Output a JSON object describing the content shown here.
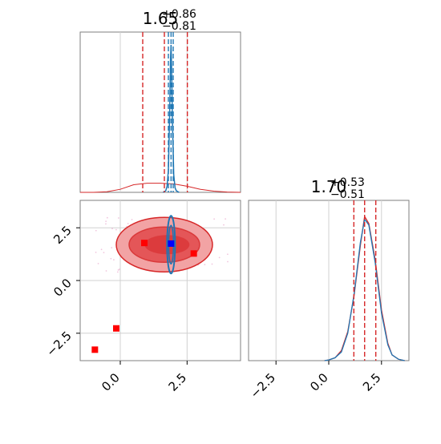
{
  "colors": {
    "red": "#d62728",
    "red_fill_outer": "#f2a3a4",
    "red_fill_inner": "#e2494b",
    "blue": "#1f77b4",
    "marker_red": "#ff0000",
    "marker_blue": "#0000ff",
    "grid": "#d0d0d0",
    "frame": "#7f7f7f"
  },
  "chart_data": [
    {
      "type": "histogram",
      "panel": "top-left",
      "title": {
        "value": "1.65",
        "plus": "+0.86",
        "minus": "−0.81"
      },
      "xlim": [
        -1.5,
        4.5
      ],
      "grid": true,
      "quantile_lines_red": [
        0.84,
        1.65,
        2.51
      ],
      "quantile_lines_blue": [
        1.8,
        1.9,
        1.98
      ],
      "series": [
        {
          "color": "red",
          "note": "broad distribution",
          "x": [
            -1.5,
            -1.0,
            -0.5,
            0.0,
            0.5,
            1.0,
            1.5,
            2.0,
            2.5,
            3.0,
            3.5,
            4.0,
            4.5
          ],
          "y": [
            0,
            0,
            0.004,
            0.02,
            0.05,
            0.06,
            0.06,
            0.055,
            0.04,
            0.02,
            0.008,
            0.002,
            0
          ]
        },
        {
          "color": "blue",
          "note": "narrow peak",
          "x": [
            1.6,
            1.7,
            1.75,
            1.8,
            1.85,
            1.88,
            1.9,
            1.92,
            1.95,
            2.0,
            2.05,
            2.1,
            2.2
          ],
          "y": [
            0,
            0.01,
            0.04,
            0.15,
            0.55,
            0.9,
            1.0,
            0.85,
            0.5,
            0.12,
            0.03,
            0.01,
            0
          ]
        }
      ]
    },
    {
      "type": "contour",
      "panel": "bottom-left",
      "xlim": [
        -1.5,
        4.5
      ],
      "ylim": [
        -3.8,
        3.8
      ],
      "grid": true,
      "xticks": [
        "0.0",
        "2.5"
      ],
      "yticks": [
        "2.5",
        "0.0",
        "−2.5"
      ],
      "red_center": [
        1.65,
        1.7
      ],
      "blue_center": [
        1.9,
        1.7
      ],
      "red_squares": [
        [
          0.9,
          1.78
        ],
        [
          2.75,
          1.28
        ],
        [
          -0.15,
          -2.27
        ],
        [
          -0.95,
          -3.28
        ]
      ],
      "blue_square": [
        1.9,
        1.75
      ]
    },
    {
      "type": "histogram",
      "panel": "bottom-right",
      "title": {
        "value": "1.70",
        "plus": "+0.53",
        "minus": "−0.51"
      },
      "xlim": [
        -3.8,
        3.8
      ],
      "grid": true,
      "xticks": [
        "−2.5",
        "0.0",
        "2.5"
      ],
      "quantile_lines_red": [
        1.19,
        1.7,
        2.23
      ],
      "series": [
        {
          "color": "red",
          "x": [
            -0.2,
            0.0,
            0.3,
            0.6,
            0.9,
            1.2,
            1.5,
            1.7,
            1.9,
            2.2,
            2.5,
            2.8,
            3.0,
            3.3,
            3.6
          ],
          "y": [
            0,
            0.005,
            0.02,
            0.07,
            0.2,
            0.45,
            0.8,
            1.0,
            0.95,
            0.7,
            0.35,
            0.12,
            0.04,
            0.01,
            0
          ]
        },
        {
          "color": "blue",
          "x": [
            -0.2,
            0.0,
            0.3,
            0.6,
            0.9,
            1.2,
            1.5,
            1.7,
            1.9,
            2.2,
            2.5,
            2.8,
            3.0,
            3.3,
            3.6
          ],
          "y": [
            0,
            0.005,
            0.02,
            0.06,
            0.19,
            0.46,
            0.82,
            0.98,
            0.94,
            0.68,
            0.33,
            0.11,
            0.04,
            0.01,
            0
          ]
        }
      ]
    }
  ]
}
